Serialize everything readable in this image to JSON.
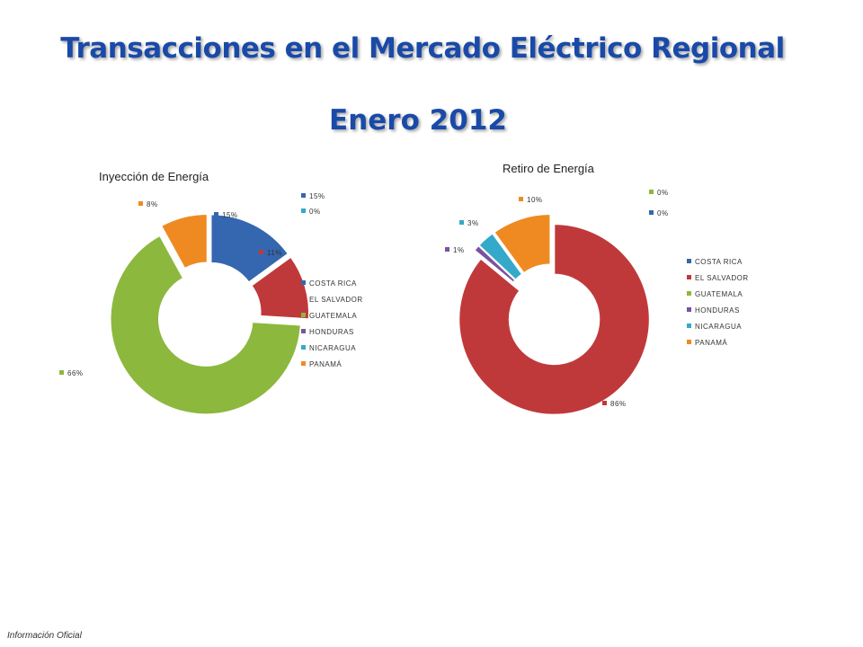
{
  "header": {
    "title": "Transacciones en el Mercado Eléctrico Regional",
    "subtitle": "Enero 2012"
  },
  "footer": {
    "text": "Información Oficial"
  },
  "colors": {
    "title": "#1a4aa8",
    "COSTA RICA": "#3566b0",
    "EL SALVADOR": "#c0393a",
    "GUATEMALA": "#8cb83e",
    "HONDURAS": "#7a52a3",
    "NICARAGUA": "#35a9c9",
    "PANAMÁ": "#ef8a22"
  },
  "chart_data": [
    {
      "type": "pie",
      "style": "doughnut, exploded slices",
      "title": "Inyección de Energía",
      "legend_placement": "right",
      "categories": [
        "COSTA RICA",
        "EL SALVADOR",
        "GUATEMALA",
        "HONDURAS",
        "NICARAGUA",
        "PANAMÁ"
      ],
      "values": [
        15,
        11,
        66,
        0,
        0,
        8
      ],
      "labels": [
        "15%",
        "11%",
        "66%",
        "0%",
        "0%",
        "8%"
      ]
    },
    {
      "type": "pie",
      "style": "doughnut, exploded slices",
      "title": "Retiro de Energía",
      "legend_placement": "right",
      "categories": [
        "COSTA RICA",
        "EL SALVADOR",
        "GUATEMALA",
        "HONDURAS",
        "NICARAGUA",
        "PANAMÁ"
      ],
      "values": [
        0,
        86,
        0,
        1,
        3,
        10
      ],
      "labels": [
        "0%",
        "86%",
        "0%",
        "1%",
        "3%",
        "10%"
      ]
    }
  ]
}
